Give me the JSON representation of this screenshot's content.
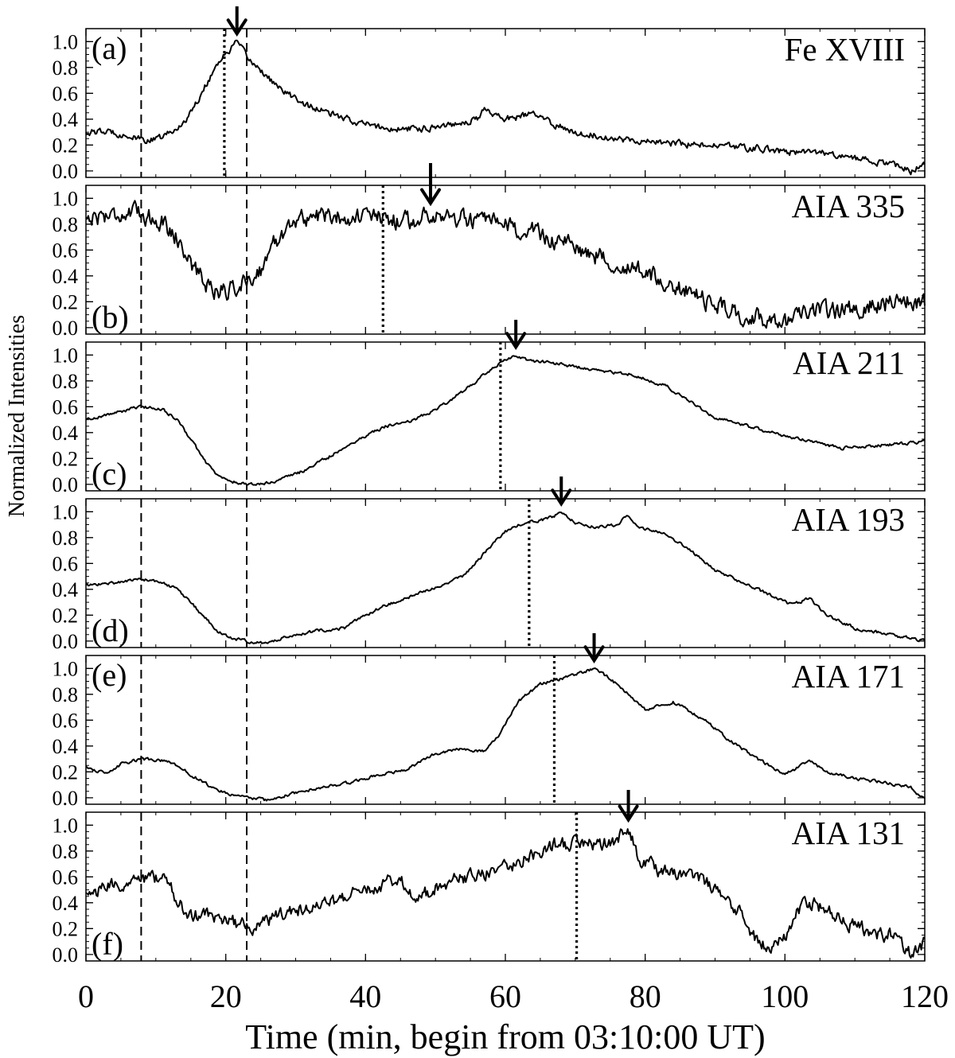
{
  "chart_data": {
    "type": "line",
    "ylabel": "Normalized Intensities",
    "xlabel": "Time (min, begin from 03:10:00 UT)",
    "xlim": [
      0,
      120
    ],
    "ylim": [
      -0.05,
      1.1
    ],
    "x_ticks": [
      0,
      20,
      40,
      60,
      80,
      100,
      120
    ],
    "x_tick_labels": [
      "0",
      "20",
      "40",
      "60",
      "80",
      "100",
      "120"
    ],
    "y_ticks": [
      0.0,
      0.2,
      0.4,
      0.6,
      0.8,
      1.0
    ],
    "y_tick_labels": [
      "0.0",
      "0.2",
      "0.4",
      "0.6",
      "0.8",
      "1.0"
    ],
    "dashed_lines_x": [
      7.9,
      23.0
    ],
    "panels": [
      {
        "label": "(a)",
        "label_position": "top-left",
        "name": "Fe XVIII",
        "dotted_x": 19.8,
        "arrow_x": 21.6,
        "noise": 0.022,
        "points": [
          [
            0,
            0.3
          ],
          [
            4,
            0.3
          ],
          [
            7.9,
            0.24
          ],
          [
            10,
            0.24
          ],
          [
            13,
            0.32
          ],
          [
            15,
            0.45
          ],
          [
            17,
            0.65
          ],
          [
            19,
            0.85
          ],
          [
            20,
            0.9
          ],
          [
            21.6,
            1.0
          ],
          [
            23,
            0.88
          ],
          [
            25,
            0.78
          ],
          [
            28,
            0.62
          ],
          [
            32,
            0.5
          ],
          [
            36,
            0.42
          ],
          [
            40,
            0.36
          ],
          [
            44,
            0.32
          ],
          [
            48,
            0.33
          ],
          [
            52,
            0.36
          ],
          [
            56,
            0.4
          ],
          [
            57,
            0.48
          ],
          [
            60,
            0.4
          ],
          [
            64,
            0.44
          ],
          [
            67,
            0.36
          ],
          [
            70,
            0.3
          ],
          [
            76,
            0.25
          ],
          [
            82,
            0.22
          ],
          [
            88,
            0.2
          ],
          [
            95,
            0.18
          ],
          [
            100,
            0.15
          ],
          [
            105,
            0.14
          ],
          [
            110,
            0.1
          ],
          [
            115,
            0.05
          ],
          [
            118,
            0.0
          ],
          [
            120,
            0.05
          ]
        ]
      },
      {
        "label": "(b)",
        "label_position": "bottom-left",
        "name": "AIA 335",
        "dotted_x": 42.5,
        "arrow_x": 49.3,
        "noise": 0.06,
        "points": [
          [
            0,
            0.85
          ],
          [
            4,
            0.88
          ],
          [
            7.9,
            0.88
          ],
          [
            11,
            0.82
          ],
          [
            13,
            0.7
          ],
          [
            15,
            0.5
          ],
          [
            17,
            0.35
          ],
          [
            19,
            0.28
          ],
          [
            21,
            0.3
          ],
          [
            23,
            0.36
          ],
          [
            25,
            0.45
          ],
          [
            27,
            0.65
          ],
          [
            29,
            0.8
          ],
          [
            32,
            0.86
          ],
          [
            36,
            0.86
          ],
          [
            40,
            0.86
          ],
          [
            44,
            0.83
          ],
          [
            47,
            0.82
          ],
          [
            49.3,
            0.9
          ],
          [
            52,
            0.85
          ],
          [
            56,
            0.82
          ],
          [
            60,
            0.78
          ],
          [
            65,
            0.72
          ],
          [
            70,
            0.62
          ],
          [
            75,
            0.52
          ],
          [
            80,
            0.42
          ],
          [
            85,
            0.3
          ],
          [
            90,
            0.18
          ],
          [
            95,
            0.08
          ],
          [
            100,
            0.05
          ],
          [
            105,
            0.12
          ],
          [
            110,
            0.15
          ],
          [
            115,
            0.2
          ],
          [
            120,
            0.2
          ]
        ]
      },
      {
        "label": "(c)",
        "label_position": "bottom-left",
        "name": "AIA 211",
        "dotted_x": 59.3,
        "arrow_x": 61.5,
        "noise": 0.01,
        "points": [
          [
            0,
            0.5
          ],
          [
            4,
            0.55
          ],
          [
            7.9,
            0.6
          ],
          [
            11,
            0.58
          ],
          [
            13,
            0.5
          ],
          [
            15,
            0.35
          ],
          [
            17,
            0.18
          ],
          [
            19,
            0.06
          ],
          [
            21,
            0.02
          ],
          [
            23,
            0.0
          ],
          [
            25,
            0.0
          ],
          [
            28,
            0.04
          ],
          [
            31,
            0.1
          ],
          [
            35,
            0.22
          ],
          [
            39,
            0.35
          ],
          [
            43,
            0.45
          ],
          [
            47,
            0.5
          ],
          [
            50,
            0.58
          ],
          [
            54,
            0.72
          ],
          [
            57,
            0.85
          ],
          [
            60,
            0.96
          ],
          [
            61.5,
            1.0
          ],
          [
            63,
            0.96
          ],
          [
            68,
            0.93
          ],
          [
            73,
            0.88
          ],
          [
            78,
            0.85
          ],
          [
            83,
            0.76
          ],
          [
            86,
            0.65
          ],
          [
            90,
            0.52
          ],
          [
            94,
            0.46
          ],
          [
            98,
            0.4
          ],
          [
            103,
            0.34
          ],
          [
            108,
            0.28
          ],
          [
            113,
            0.3
          ],
          [
            118,
            0.32
          ],
          [
            120,
            0.33
          ]
        ]
      },
      {
        "label": "(d)",
        "label_position": "bottom-left",
        "name": "AIA 193",
        "dotted_x": 63.4,
        "arrow_x": 68.0,
        "noise": 0.01,
        "points": [
          [
            0,
            0.43
          ],
          [
            4,
            0.45
          ],
          [
            7.9,
            0.48
          ],
          [
            11,
            0.45
          ],
          [
            13,
            0.4
          ],
          [
            15,
            0.3
          ],
          [
            17,
            0.18
          ],
          [
            19,
            0.07
          ],
          [
            21,
            0.02
          ],
          [
            23,
            0.0
          ],
          [
            26,
            -0.02
          ],
          [
            29,
            0.04
          ],
          [
            33,
            0.08
          ],
          [
            37,
            0.1
          ],
          [
            40,
            0.2
          ],
          [
            43,
            0.28
          ],
          [
            46,
            0.33
          ],
          [
            50,
            0.42
          ],
          [
            54,
            0.5
          ],
          [
            57,
            0.68
          ],
          [
            60,
            0.85
          ],
          [
            63,
            0.92
          ],
          [
            66,
            0.94
          ],
          [
            68,
            1.0
          ],
          [
            70,
            0.92
          ],
          [
            73,
            0.88
          ],
          [
            76,
            0.9
          ],
          [
            77.5,
            0.97
          ],
          [
            79,
            0.88
          ],
          [
            83,
            0.82
          ],
          [
            86,
            0.72
          ],
          [
            90,
            0.55
          ],
          [
            94,
            0.45
          ],
          [
            98,
            0.35
          ],
          [
            101,
            0.28
          ],
          [
            103.5,
            0.33
          ],
          [
            106,
            0.2
          ],
          [
            110,
            0.1
          ],
          [
            114,
            0.06
          ],
          [
            118,
            0.02
          ],
          [
            120,
            0.0
          ]
        ]
      },
      {
        "label": "(e)",
        "label_position": "top-left",
        "name": "AIA 171",
        "dotted_x": 67.0,
        "arrow_x": 72.7,
        "noise": 0.01,
        "points": [
          [
            0,
            0.24
          ],
          [
            3,
            0.18
          ],
          [
            5,
            0.26
          ],
          [
            7.9,
            0.3
          ],
          [
            12,
            0.28
          ],
          [
            15,
            0.18
          ],
          [
            18,
            0.08
          ],
          [
            21,
            0.02
          ],
          [
            23,
            0.0
          ],
          [
            26,
            -0.02
          ],
          [
            30,
            0.04
          ],
          [
            34,
            0.08
          ],
          [
            38,
            0.12
          ],
          [
            42,
            0.18
          ],
          [
            46,
            0.22
          ],
          [
            49,
            0.32
          ],
          [
            53,
            0.38
          ],
          [
            57,
            0.36
          ],
          [
            59,
            0.48
          ],
          [
            62,
            0.75
          ],
          [
            65,
            0.88
          ],
          [
            68,
            0.92
          ],
          [
            72.7,
            1.0
          ],
          [
            75,
            0.92
          ],
          [
            78,
            0.78
          ],
          [
            80,
            0.68
          ],
          [
            84,
            0.74
          ],
          [
            88,
            0.62
          ],
          [
            92,
            0.45
          ],
          [
            96,
            0.3
          ],
          [
            100,
            0.18
          ],
          [
            103.5,
            0.28
          ],
          [
            106,
            0.2
          ],
          [
            110,
            0.15
          ],
          [
            114,
            0.12
          ],
          [
            118,
            0.08
          ],
          [
            120,
            -0.02
          ]
        ]
      },
      {
        "label": "(f)",
        "label_position": "bottom-left",
        "name": "AIA 131",
        "dotted_x": 70.2,
        "arrow_x": 77.6,
        "noise": 0.045,
        "points": [
          [
            0,
            0.45
          ],
          [
            3,
            0.52
          ],
          [
            6,
            0.55
          ],
          [
            7.9,
            0.6
          ],
          [
            10,
            0.58
          ],
          [
            12,
            0.55
          ],
          [
            13,
            0.4
          ],
          [
            15,
            0.3
          ],
          [
            18,
            0.3
          ],
          [
            21,
            0.25
          ],
          [
            24,
            0.2
          ],
          [
            27,
            0.28
          ],
          [
            31,
            0.35
          ],
          [
            35,
            0.4
          ],
          [
            39,
            0.48
          ],
          [
            43,
            0.55
          ],
          [
            45,
            0.6
          ],
          [
            47,
            0.42
          ],
          [
            51,
            0.55
          ],
          [
            55,
            0.6
          ],
          [
            59,
            0.65
          ],
          [
            63,
            0.75
          ],
          [
            67,
            0.85
          ],
          [
            70.2,
            0.85
          ],
          [
            73,
            0.85
          ],
          [
            76,
            0.88
          ],
          [
            77.6,
            0.98
          ],
          [
            79,
            0.75
          ],
          [
            82,
            0.65
          ],
          [
            86,
            0.6
          ],
          [
            89,
            0.55
          ],
          [
            91,
            0.48
          ],
          [
            94,
            0.3
          ],
          [
            96,
            0.1
          ],
          [
            98,
            0.05
          ],
          [
            100,
            0.15
          ],
          [
            102,
            0.35
          ],
          [
            104,
            0.4
          ],
          [
            107,
            0.3
          ],
          [
            110,
            0.22
          ],
          [
            113,
            0.15
          ],
          [
            116,
            0.15
          ],
          [
            118,
            0.0
          ],
          [
            120,
            0.08
          ]
        ]
      }
    ]
  }
}
